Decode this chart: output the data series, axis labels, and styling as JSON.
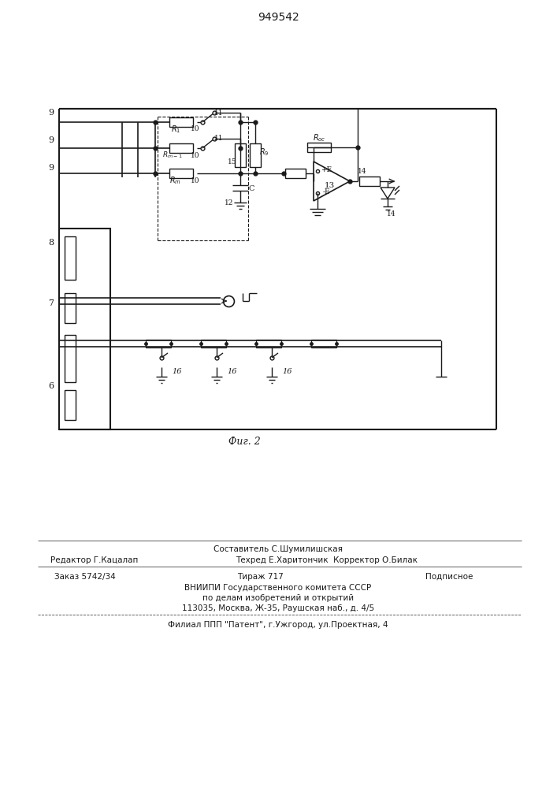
{
  "title": "949542",
  "fig_label": "Фиг. 2",
  "bg_color": "#ffffff",
  "line_color": "#1a1a1a",
  "footer": {
    "comp": "Составитель С.Шумилишская",
    "editor": "Редактор Г.Кацалап",
    "tech": "Техред Е.Харитончик  Корректор О.Билак",
    "order": "Заказ 5742/34",
    "circ": "Тираж 717",
    "sub": "Подписное",
    "vniip1": "ВНИИПИ Государственного комитета СССР",
    "vniip2": "по делам изобретений и открытий",
    "addr": "113035, Москва, Ж-35, Раушская наб., д. 4/5",
    "branch": "Филиал ППП \"Патент\", г.Ужгород, ул.Проектная, 4"
  }
}
